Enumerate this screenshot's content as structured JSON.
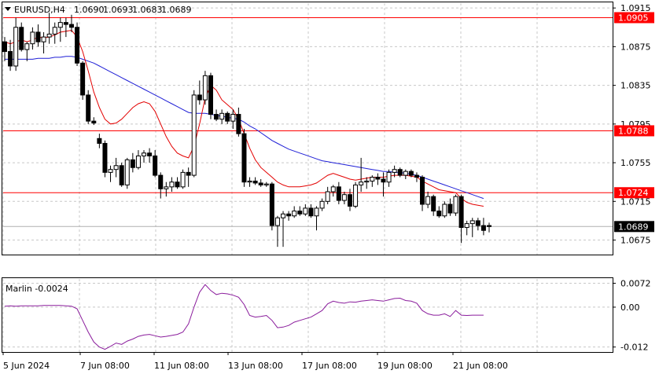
{
  "chart_data": [
    {
      "type": "candlestick",
      "symbol": "EURUSD,H4",
      "ohlc_header": [
        "1.0690",
        "1.0693",
        "1.0683",
        "1.0689"
      ],
      "ylim": [
        1.066,
        1.092
      ],
      "y_ticks": [
        "1.0915",
        "1.0875",
        "1.0835",
        "1.0795",
        "1.0755",
        "1.0715",
        "1.0675"
      ],
      "x_ticks": [
        "5 Jun 2024",
        "7 Jun 08:00",
        "11 Jun 08:00",
        "13 Jun 08:00",
        "17 Jun 08:00",
        "19 Jun 08:00",
        "21 Jun 08:00"
      ],
      "grid": true,
      "current_price": "1.0689",
      "levels": [
        {
          "label": "1.0905",
          "value": 1.0905,
          "color": "#ff0000"
        },
        {
          "label": "1.0788",
          "value": 1.0788,
          "color": "#ff0000"
        },
        {
          "label": "1.0724",
          "value": 1.0724,
          "color": "#ff0000"
        }
      ],
      "candles": [
        [
          1.088,
          1.0885,
          1.086,
          1.087
        ],
        [
          1.087,
          1.0882,
          1.085,
          1.0855
        ],
        [
          1.0855,
          1.0905,
          1.085,
          1.0895
        ],
        [
          1.0895,
          1.09,
          1.087,
          1.0872
        ],
        [
          1.0872,
          1.088,
          1.086,
          1.0878
        ],
        [
          1.0878,
          1.0895,
          1.0872,
          1.089
        ],
        [
          1.089,
          1.0898,
          1.0875,
          1.088
        ],
        [
          1.088,
          1.089,
          1.0868,
          1.0885
        ],
        [
          1.0885,
          1.091,
          1.0878,
          1.0888
        ],
        [
          1.0888,
          1.09,
          1.0878,
          1.0895
        ],
        [
          1.0895,
          1.0905,
          1.088,
          1.09
        ],
        [
          1.09,
          1.0905,
          1.0885,
          1.0898
        ],
        [
          1.0898,
          1.0908,
          1.089,
          1.0895
        ],
        [
          1.0895,
          1.09,
          1.0855,
          1.0858
        ],
        [
          1.0858,
          1.086,
          1.082,
          1.0825
        ],
        [
          1.0825,
          1.083,
          1.0795,
          1.0798
        ],
        [
          1.0798,
          1.0802,
          1.0794,
          1.0796
        ],
        [
          1.078,
          1.0785,
          1.077,
          1.0775
        ],
        [
          1.0775,
          1.0778,
          1.074,
          1.0745
        ],
        [
          1.0745,
          1.0752,
          1.0735,
          1.0748
        ],
        [
          1.0748,
          1.076,
          1.074,
          1.0752
        ],
        [
          1.0752,
          1.0755,
          1.073,
          1.0732
        ],
        [
          1.0732,
          1.076,
          1.0728,
          1.0758
        ],
        [
          1.0758,
          1.0765,
          1.0745,
          1.075
        ],
        [
          1.075,
          1.0768,
          1.0748,
          1.0762
        ],
        [
          1.0762,
          1.0768,
          1.0755,
          1.0765
        ],
        [
          1.0765,
          1.077,
          1.0755,
          1.0762
        ],
        [
          1.0762,
          1.0768,
          1.074,
          1.0742
        ],
        [
          1.0742,
          1.0745,
          1.0718,
          1.0728
        ],
        [
          1.0728,
          1.0735,
          1.072,
          1.073
        ],
        [
          1.073,
          1.074,
          1.0725,
          1.0735
        ],
        [
          1.0735,
          1.074,
          1.0728,
          1.073
        ],
        [
          1.073,
          1.0748,
          1.0728,
          1.0745
        ],
        [
          1.0745,
          1.075,
          1.073,
          1.0742
        ],
        [
          1.0742,
          1.083,
          1.074,
          1.0825
        ],
        [
          1.0825,
          1.084,
          1.0815,
          1.082
        ],
        [
          1.082,
          1.085,
          1.0815,
          1.0845
        ],
        [
          1.0845,
          1.0848,
          1.08,
          1.0805
        ],
        [
          1.0805,
          1.081,
          1.0798,
          1.08
        ],
        [
          1.08,
          1.081,
          1.0795,
          1.0806
        ],
        [
          1.0806,
          1.0808,
          1.0795,
          1.0798
        ],
        [
          1.0798,
          1.081,
          1.079,
          1.0805
        ],
        [
          1.0805,
          1.0812,
          1.0782,
          1.0785
        ],
        [
          1.0785,
          1.079,
          1.073,
          1.0735
        ],
        [
          1.0735,
          1.074,
          1.073,
          1.0736
        ],
        [
          1.0736,
          1.074,
          1.0732,
          1.0734
        ],
        [
          1.0734,
          1.0738,
          1.073,
          1.0732
        ],
        [
          1.0732,
          1.0735,
          1.073,
          1.0733
        ],
        [
          1.0733,
          1.0735,
          1.0685,
          1.069
        ],
        [
          1.069,
          1.07,
          1.0668,
          1.0698
        ],
        [
          1.0698,
          1.0705,
          1.0668,
          1.0702
        ],
        [
          1.0702,
          1.0705,
          1.0695,
          1.07
        ],
        [
          1.07,
          1.071,
          1.0698,
          1.0705
        ],
        [
          1.0705,
          1.071,
          1.07,
          1.0702
        ],
        [
          1.0702,
          1.0712,
          1.07,
          1.0708
        ],
        [
          1.0708,
          1.0712,
          1.0698,
          1.07
        ],
        [
          1.07,
          1.071,
          1.0685,
          1.0708
        ],
        [
          1.0708,
          1.0718,
          1.0705,
          1.0715
        ],
        [
          1.0715,
          1.073,
          1.0712,
          1.0725
        ],
        [
          1.0725,
          1.0732,
          1.072,
          1.073
        ],
        [
          1.073,
          1.0735,
          1.0712,
          1.0716
        ],
        [
          1.0716,
          1.0725,
          1.0712,
          1.0722
        ],
        [
          1.0722,
          1.0728,
          1.0705,
          1.071
        ],
        [
          1.071,
          1.0735,
          1.0708,
          1.0732
        ],
        [
          1.0732,
          1.076,
          1.0725,
          1.0735
        ],
        [
          1.0735,
          1.074,
          1.0728,
          1.0736
        ],
        [
          1.0736,
          1.0742,
          1.073,
          1.074
        ],
        [
          1.074,
          1.0744,
          1.0732,
          1.0738
        ],
        [
          1.0738,
          1.0745,
          1.072,
          1.0735
        ],
        [
          1.0735,
          1.0748,
          1.073,
          1.0745
        ],
        [
          1.0745,
          1.0752,
          1.074,
          1.0748
        ],
        [
          1.0748,
          1.075,
          1.074,
          1.0742
        ],
        [
          1.0742,
          1.0748,
          1.0738,
          1.0746
        ],
        [
          1.0746,
          1.0748,
          1.074,
          1.0742
        ],
        [
          1.0742,
          1.0745,
          1.0735,
          1.074
        ],
        [
          1.074,
          1.0742,
          1.0705,
          1.0712
        ],
        [
          1.0712,
          1.0725,
          1.0708,
          1.072
        ],
        [
          1.072,
          1.0722,
          1.07,
          1.0705
        ],
        [
          1.0705,
          1.071,
          1.0698,
          1.07
        ],
        [
          1.07,
          1.0715,
          1.0698,
          1.0712
        ],
        [
          1.0712,
          1.0718,
          1.07,
          1.0703
        ],
        [
          1.0703,
          1.0722,
          1.07,
          1.072
        ],
        [
          1.072,
          1.0722,
          1.0672,
          1.0688
        ],
        [
          1.0688,
          1.0695,
          1.068,
          1.0692
        ],
        [
          1.0692,
          1.0698,
          1.0678,
          1.0695
        ],
        [
          1.0695,
          1.0698,
          1.0685,
          1.069
        ],
        [
          1.069,
          1.0698,
          1.068,
          1.0685
        ],
        [
          1.069,
          1.0693,
          1.0683,
          1.0689
        ]
      ],
      "ma_fast": [
        1.088,
        1.0878,
        1.088,
        1.0882,
        1.088,
        1.0882,
        1.0885,
        1.0884,
        1.0885,
        1.0887,
        1.089,
        1.0891,
        1.0892,
        1.0885,
        1.087,
        1.085,
        1.0828,
        1.0812,
        1.08,
        1.0795,
        1.0796,
        1.08,
        1.0806,
        1.0812,
        1.0816,
        1.0818,
        1.0816,
        1.0808,
        1.0795,
        1.0782,
        1.0772,
        1.0765,
        1.0762,
        1.076,
        1.0772,
        1.0795,
        1.0822,
        1.0835,
        1.083,
        1.082,
        1.0815,
        1.081,
        1.08,
        1.0785,
        1.077,
        1.0758,
        1.075,
        1.0745,
        1.074,
        1.0735,
        1.0732,
        1.073,
        1.073,
        1.073,
        1.0731,
        1.0732,
        1.0734,
        1.0738,
        1.0742,
        1.0744,
        1.0742,
        1.074,
        1.0738,
        1.0737,
        1.0738,
        1.0739,
        1.074,
        1.074,
        1.074,
        1.0741,
        1.0742,
        1.0742,
        1.0742,
        1.0741,
        1.074,
        1.0736,
        1.0733,
        1.073,
        1.0727,
        1.0726,
        1.0725,
        1.0724,
        1.0718,
        1.0714,
        1.0712,
        1.0711,
        1.071
      ],
      "ma_slow": [
        1.0862,
        1.0862,
        1.0862,
        1.0862,
        1.0862,
        1.0862,
        1.0863,
        1.0863,
        1.0863,
        1.0864,
        1.0864,
        1.0865,
        1.0865,
        1.0864,
        1.0862,
        1.086,
        1.0858,
        1.0855,
        1.0852,
        1.0849,
        1.0846,
        1.0843,
        1.084,
        1.0837,
        1.0834,
        1.0831,
        1.0828,
        1.0825,
        1.0822,
        1.0819,
        1.0816,
        1.0813,
        1.081,
        1.0807,
        1.0806,
        1.0806,
        1.0806,
        1.0805,
        1.0804,
        1.0803,
        1.0802,
        1.0801,
        1.08,
        1.0797,
        1.0793,
        1.079,
        1.0786,
        1.0782,
        1.0778,
        1.0775,
        1.0772,
        1.0769,
        1.0767,
        1.0765,
        1.0763,
        1.0761,
        1.0759,
        1.0757,
        1.0756,
        1.0755,
        1.0754,
        1.0753,
        1.0752,
        1.0751,
        1.075,
        1.0749,
        1.0748,
        1.0747,
        1.0746,
        1.0746,
        1.0745,
        1.0745,
        1.0744,
        1.0743,
        1.0742,
        1.074,
        1.0738,
        1.0736,
        1.0734,
        1.0732,
        1.073,
        1.0728,
        1.0726,
        1.0724,
        1.0722,
        1.072,
        1.0718
      ],
      "colors": {
        "bull": "#ffffff",
        "bear": "#000000",
        "ma_fast": "#e30000",
        "ma_slow": "#1f1fd6",
        "grid": "#c8c8c8"
      }
    },
    {
      "type": "line",
      "indicator_label": "Marlin -0.0024",
      "ylim": [
        -0.0135,
        0.0085
      ],
      "y_ticks": [
        "0.0072",
        "0.00",
        "-0.012"
      ],
      "grid": true,
      "color": "#8a1c9c",
      "values": [
        0.0003,
        0.0004,
        0.0003,
        0.0004,
        0.0004,
        0.0004,
        0.0004,
        0.0005,
        0.0005,
        0.0005,
        0.0005,
        0.0004,
        0.0003,
        -0.0005,
        -0.004,
        -0.0075,
        -0.0105,
        -0.012,
        -0.0127,
        -0.0118,
        -0.0108,
        -0.0112,
        -0.0102,
        -0.0096,
        -0.0088,
        -0.0084,
        -0.0082,
        -0.0086,
        -0.009,
        -0.0088,
        -0.0085,
        -0.0082,
        -0.0075,
        -0.005,
        0.0,
        0.0045,
        0.0068,
        0.005,
        0.0038,
        0.0042,
        0.004,
        0.0036,
        0.003,
        0.0008,
        -0.0025,
        -0.003,
        -0.0028,
        -0.0025,
        -0.004,
        -0.0062,
        -0.006,
        -0.0055,
        -0.0045,
        -0.004,
        -0.0035,
        -0.003,
        -0.002,
        -0.001,
        0.001,
        0.0018,
        0.0014,
        0.0012,
        0.0016,
        0.0015,
        0.0018,
        0.002,
        0.0022,
        0.002,
        0.0018,
        0.0022,
        0.0026,
        0.0027,
        0.002,
        0.0018,
        0.0012,
        -0.001,
        -0.002,
        -0.0024,
        -0.0024,
        -0.002,
        -0.0028,
        -0.001,
        -0.0024,
        -0.0025,
        -0.0024,
        -0.0024,
        -0.0024
      ]
    }
  ]
}
